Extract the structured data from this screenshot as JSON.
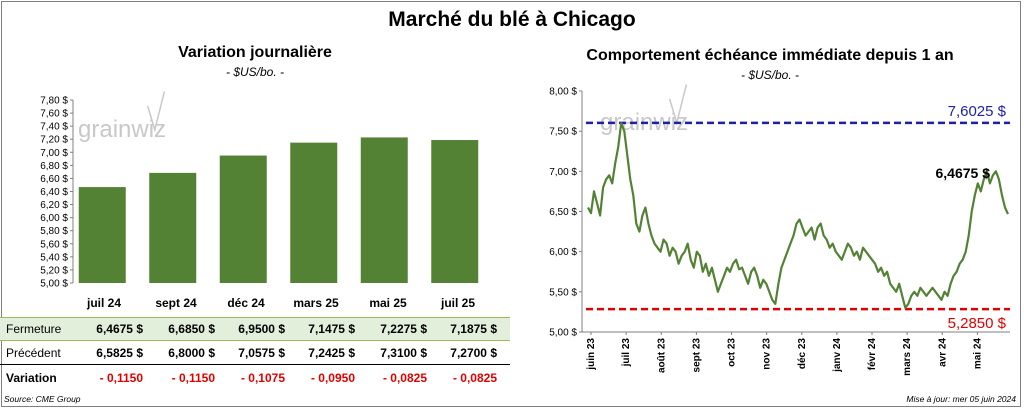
{
  "title": "Marché du blé à Chicago",
  "left_panel": {
    "title": "Variation  journalière",
    "unit": "- $US/bo. -"
  },
  "right_panel": {
    "title": "Comportement  échéance immédiate depuis 1 an",
    "unit": "- $US/bo. -"
  },
  "watermark": "grainwiz",
  "table": {
    "columns": [
      "juil 24",
      "sept 24",
      "déc 24",
      "mars 25",
      "mai 25",
      "juil 25"
    ],
    "rows": [
      {
        "label": "Fermeture",
        "values": [
          "6,4675  $",
          "6,6850  $",
          "6,9500  $",
          "7,1475  $",
          "7,2275  $",
          "7,1875  $"
        ]
      },
      {
        "label": "Précédent",
        "values": [
          "6,5825  $",
          "6,8000  $",
          "7,0575  $",
          "7,2425  $",
          "7,3100  $",
          "7,2700  $"
        ]
      },
      {
        "label": "Variation",
        "values": [
          "- 0,1150",
          "- 0,1150",
          "- 0,1075",
          "- 0,0950",
          "- 0,0825",
          "- 0,0825"
        ]
      }
    ]
  },
  "source": "Source: CME Group",
  "updated": "Mise à jour: mer 05 juin 2024",
  "colors": {
    "bar": "#548235",
    "line": "#548235",
    "high": "#1f1fa8",
    "low": "#e00000",
    "close_bg": "#e2efda"
  },
  "chart_data": [
    {
      "type": "bar",
      "categories": [
        "juil 24",
        "sept 24",
        "déc 24",
        "mars 25",
        "mai 25",
        "juil 25"
      ],
      "values": [
        6.4675,
        6.685,
        6.95,
        7.1475,
        7.2275,
        7.1875
      ],
      "ylim": [
        5.0,
        7.8
      ],
      "yticks": [
        "5,00 $",
        "5,20 $",
        "5,40 $",
        "5,60 $",
        "5,80 $",
        "6,00 $",
        "6,20 $",
        "6,40 $",
        "6,60 $",
        "6,80 $",
        "7,00 $",
        "7,20 $",
        "7,40 $",
        "7,60 $",
        "7,80 $"
      ],
      "grid": false
    },
    {
      "type": "line",
      "ylim": [
        5.0,
        8.0
      ],
      "yticks": [
        "5,00 $",
        "5,50 $",
        "6,00 $",
        "6,50 $",
        "7,00 $",
        "7,50 $",
        "8,00 $"
      ],
      "xticks": [
        "juin 23",
        "juil 23",
        "août 23",
        "sept 23",
        "oct 23",
        "nov 23",
        "déc 23",
        "janv 24",
        "févr 24",
        "mars 24",
        "avr 24",
        "mai 24"
      ],
      "values": [
        6.55,
        6.48,
        6.75,
        6.6,
        6.45,
        6.8,
        6.9,
        6.95,
        6.85,
        7.1,
        7.3,
        7.6,
        7.5,
        7.2,
        6.9,
        6.7,
        6.35,
        6.25,
        6.45,
        6.55,
        6.35,
        6.2,
        6.1,
        6.05,
        6.0,
        6.15,
        6.1,
        5.95,
        6.05,
        6.0,
        5.85,
        5.95,
        6.0,
        6.1,
        5.9,
        5.8,
        6.0,
        5.95,
        5.75,
        5.85,
        5.7,
        5.8,
        5.65,
        5.5,
        5.6,
        5.7,
        5.8,
        5.75,
        5.85,
        5.9,
        5.78,
        5.8,
        5.7,
        5.6,
        5.75,
        5.8,
        5.7,
        5.55,
        5.65,
        5.6,
        5.5,
        5.4,
        5.35,
        5.6,
        5.8,
        5.9,
        6.0,
        6.1,
        6.2,
        6.35,
        6.4,
        6.3,
        6.2,
        6.25,
        6.3,
        6.15,
        6.3,
        6.35,
        6.2,
        6.15,
        6.05,
        6.1,
        6.0,
        5.95,
        5.9,
        6.0,
        6.1,
        6.05,
        5.95,
        6.0,
        5.9,
        6.05,
        6.0,
        5.95,
        5.9,
        5.85,
        5.75,
        5.8,
        5.7,
        5.75,
        5.6,
        5.55,
        5.5,
        5.6,
        5.45,
        5.3,
        5.35,
        5.45,
        5.5,
        5.45,
        5.55,
        5.5,
        5.45,
        5.5,
        5.55,
        5.5,
        5.45,
        5.4,
        5.5,
        5.45,
        5.6,
        5.7,
        5.75,
        5.85,
        5.9,
        6.0,
        6.2,
        6.5,
        6.7,
        6.85,
        6.75,
        6.9,
        7.0,
        6.85,
        6.95,
        7.0,
        6.9,
        6.7,
        6.55,
        6.4675
      ],
      "annotations": {
        "high": "7,6025 $",
        "low": "5,2850 $",
        "last": "6,4675 $"
      },
      "hlines": [
        7.6025,
        5.285
      ]
    }
  ]
}
